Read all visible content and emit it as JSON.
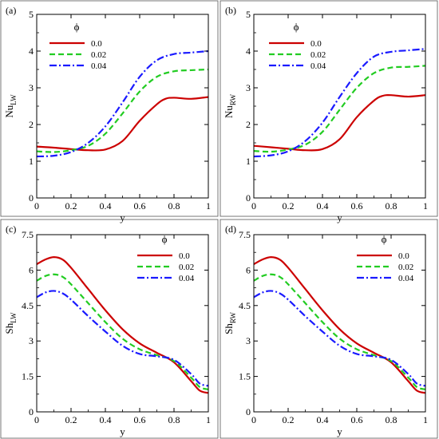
{
  "chart_data": [
    {
      "type": "line",
      "panel_label": "(a)",
      "xlabel": "y",
      "ylabel_main": "Nu",
      "ylabel_sub": "LW",
      "xlim": [
        0,
        1
      ],
      "ylim": [
        0,
        5
      ],
      "xticks": [
        0,
        0.2,
        0.4,
        0.6,
        0.8,
        1
      ],
      "xtick_labels": [
        "0",
        "0.2",
        "0.4",
        "0.6",
        "0.8",
        "1"
      ],
      "yticks": [
        0,
        1,
        2,
        3,
        4,
        5
      ],
      "ytick_labels": [
        "0",
        "1",
        "2",
        "3",
        "4",
        "5"
      ],
      "legend_title": "ϕ",
      "legend_position": "top-left",
      "series": [
        {
          "name": "0.0",
          "color": "#cc0000",
          "dash": "solid",
          "x": [
            0,
            0.1,
            0.2,
            0.3,
            0.4,
            0.5,
            0.6,
            0.7,
            0.75,
            0.8,
            0.9,
            1.0
          ],
          "y": [
            1.4,
            1.37,
            1.33,
            1.3,
            1.32,
            1.55,
            2.1,
            2.55,
            2.7,
            2.73,
            2.7,
            2.75
          ]
        },
        {
          "name": "0.02",
          "color": "#22cc22",
          "dash": "dashed",
          "x": [
            0,
            0.1,
            0.2,
            0.3,
            0.4,
            0.5,
            0.6,
            0.7,
            0.8,
            0.9,
            1.0
          ],
          "y": [
            1.27,
            1.25,
            1.3,
            1.42,
            1.75,
            2.3,
            2.9,
            3.3,
            3.45,
            3.48,
            3.5
          ]
        },
        {
          "name": "0.04",
          "color": "#1a1aff",
          "dash": "dashdot",
          "x": [
            0,
            0.1,
            0.2,
            0.3,
            0.4,
            0.5,
            0.6,
            0.7,
            0.8,
            0.9,
            1.0
          ],
          "y": [
            1.13,
            1.15,
            1.25,
            1.5,
            1.95,
            2.6,
            3.3,
            3.75,
            3.92,
            3.96,
            4.0
          ]
        }
      ]
    },
    {
      "type": "line",
      "panel_label": "(b)",
      "xlabel": "y",
      "ylabel_main": "Nu",
      "ylabel_sub": "RW",
      "xlim": [
        0,
        1
      ],
      "ylim": [
        0,
        5
      ],
      "xticks": [
        0,
        0.2,
        0.4,
        0.6,
        0.8,
        1
      ],
      "xtick_labels": [
        "0",
        "0.2",
        "0.4",
        "0.6",
        "0.8",
        "1"
      ],
      "yticks": [
        0,
        1,
        2,
        3,
        4,
        5
      ],
      "ytick_labels": [
        "0",
        "1",
        "2",
        "3",
        "4",
        "5"
      ],
      "legend_title": "ϕ",
      "legend_position": "top-left",
      "series": [
        {
          "name": "0.0",
          "color": "#cc0000",
          "dash": "solid",
          "x": [
            0,
            0.1,
            0.2,
            0.3,
            0.4,
            0.5,
            0.6,
            0.7,
            0.75,
            0.8,
            0.9,
            1.0
          ],
          "y": [
            1.42,
            1.38,
            1.34,
            1.3,
            1.33,
            1.6,
            2.2,
            2.65,
            2.78,
            2.8,
            2.76,
            2.8
          ]
        },
        {
          "name": "0.02",
          "color": "#22cc22",
          "dash": "dashed",
          "x": [
            0,
            0.1,
            0.2,
            0.3,
            0.4,
            0.5,
            0.6,
            0.7,
            0.8,
            0.9,
            1.0
          ],
          "y": [
            1.28,
            1.26,
            1.32,
            1.45,
            1.8,
            2.4,
            3.0,
            3.4,
            3.55,
            3.57,
            3.6
          ]
        },
        {
          "name": "0.04",
          "color": "#1a1aff",
          "dash": "dashdot",
          "x": [
            0,
            0.1,
            0.2,
            0.3,
            0.4,
            0.5,
            0.6,
            0.7,
            0.8,
            0.9,
            1.0
          ],
          "y": [
            1.13,
            1.16,
            1.27,
            1.55,
            2.05,
            2.75,
            3.4,
            3.85,
            3.98,
            4.02,
            4.06
          ]
        }
      ]
    },
    {
      "type": "line",
      "panel_label": "(c)",
      "xlabel": "y",
      "ylabel_main": "Sh",
      "ylabel_sub": "LW",
      "xlim": [
        0,
        1
      ],
      "ylim": [
        0,
        7.5
      ],
      "xticks": [
        0,
        0.2,
        0.4,
        0.6,
        0.8,
        1
      ],
      "xtick_labels": [
        "0",
        "0.2",
        "0.4",
        "0.6",
        "0.8",
        "1"
      ],
      "yticks": [
        0,
        1.5,
        3,
        4.5,
        6,
        7.5
      ],
      "ytick_labels": [
        "0",
        "1.5",
        "3",
        "4.5",
        "6",
        "7.5"
      ],
      "legend_title": "ϕ",
      "legend_position": "top-right",
      "series": [
        {
          "name": "0.0",
          "color": "#cc0000",
          "dash": "solid",
          "x": [
            0,
            0.05,
            0.1,
            0.15,
            0.2,
            0.3,
            0.4,
            0.5,
            0.6,
            0.7,
            0.8,
            0.9,
            0.95,
            1.0
          ],
          "y": [
            6.25,
            6.45,
            6.55,
            6.45,
            6.1,
            5.2,
            4.3,
            3.5,
            2.9,
            2.5,
            2.1,
            1.3,
            0.9,
            0.8
          ]
        },
        {
          "name": "0.02",
          "color": "#22cc22",
          "dash": "dashed",
          "x": [
            0,
            0.05,
            0.1,
            0.15,
            0.2,
            0.3,
            0.4,
            0.5,
            0.6,
            0.7,
            0.8,
            0.9,
            0.95,
            1.0
          ],
          "y": [
            5.55,
            5.75,
            5.82,
            5.72,
            5.4,
            4.6,
            3.8,
            3.1,
            2.65,
            2.4,
            2.15,
            1.45,
            1.05,
            0.95
          ]
        },
        {
          "name": "0.04",
          "color": "#1a1aff",
          "dash": "dashdot",
          "x": [
            0,
            0.05,
            0.1,
            0.15,
            0.2,
            0.3,
            0.4,
            0.5,
            0.6,
            0.7,
            0.8,
            0.9,
            0.95,
            1.0
          ],
          "y": [
            4.85,
            5.05,
            5.12,
            5.02,
            4.75,
            4.05,
            3.4,
            2.8,
            2.45,
            2.35,
            2.2,
            1.6,
            1.2,
            1.1
          ]
        }
      ]
    },
    {
      "type": "line",
      "panel_label": "(d)",
      "xlabel": "y",
      "ylabel_main": "Sh",
      "ylabel_sub": "RW",
      "xlim": [
        0,
        1
      ],
      "ylim": [
        0,
        7.5
      ],
      "xticks": [
        0,
        0.2,
        0.4,
        0.6,
        0.8,
        1
      ],
      "xtick_labels": [
        "0",
        "0.2",
        "0.4",
        "0.6",
        "0.8",
        "1"
      ],
      "yticks": [
        0,
        1.5,
        3,
        4.5,
        6,
        7.5
      ],
      "ytick_labels": [
        "0",
        "1.5",
        "3",
        "4.5",
        "6",
        "7.5"
      ],
      "legend_title": "ϕ",
      "legend_position": "top-right",
      "series": [
        {
          "name": "0.0",
          "color": "#cc0000",
          "dash": "solid",
          "x": [
            0,
            0.05,
            0.1,
            0.15,
            0.2,
            0.3,
            0.4,
            0.5,
            0.6,
            0.7,
            0.8,
            0.9,
            0.95,
            1.0
          ],
          "y": [
            6.25,
            6.45,
            6.55,
            6.45,
            6.1,
            5.2,
            4.3,
            3.5,
            2.9,
            2.5,
            2.1,
            1.3,
            0.9,
            0.8
          ]
        },
        {
          "name": "0.02",
          "color": "#22cc22",
          "dash": "dashed",
          "x": [
            0,
            0.05,
            0.1,
            0.15,
            0.2,
            0.3,
            0.4,
            0.5,
            0.6,
            0.7,
            0.8,
            0.9,
            0.95,
            1.0
          ],
          "y": [
            5.55,
            5.75,
            5.82,
            5.72,
            5.4,
            4.6,
            3.8,
            3.1,
            2.65,
            2.4,
            2.15,
            1.45,
            1.05,
            0.95
          ]
        },
        {
          "name": "0.04",
          "color": "#1a1aff",
          "dash": "dashdot",
          "x": [
            0,
            0.05,
            0.1,
            0.15,
            0.2,
            0.3,
            0.4,
            0.5,
            0.6,
            0.7,
            0.8,
            0.9,
            0.95,
            1.0
          ],
          "y": [
            4.85,
            5.05,
            5.12,
            5.02,
            4.75,
            4.05,
            3.4,
            2.8,
            2.45,
            2.35,
            2.2,
            1.6,
            1.2,
            1.1
          ]
        }
      ]
    }
  ]
}
